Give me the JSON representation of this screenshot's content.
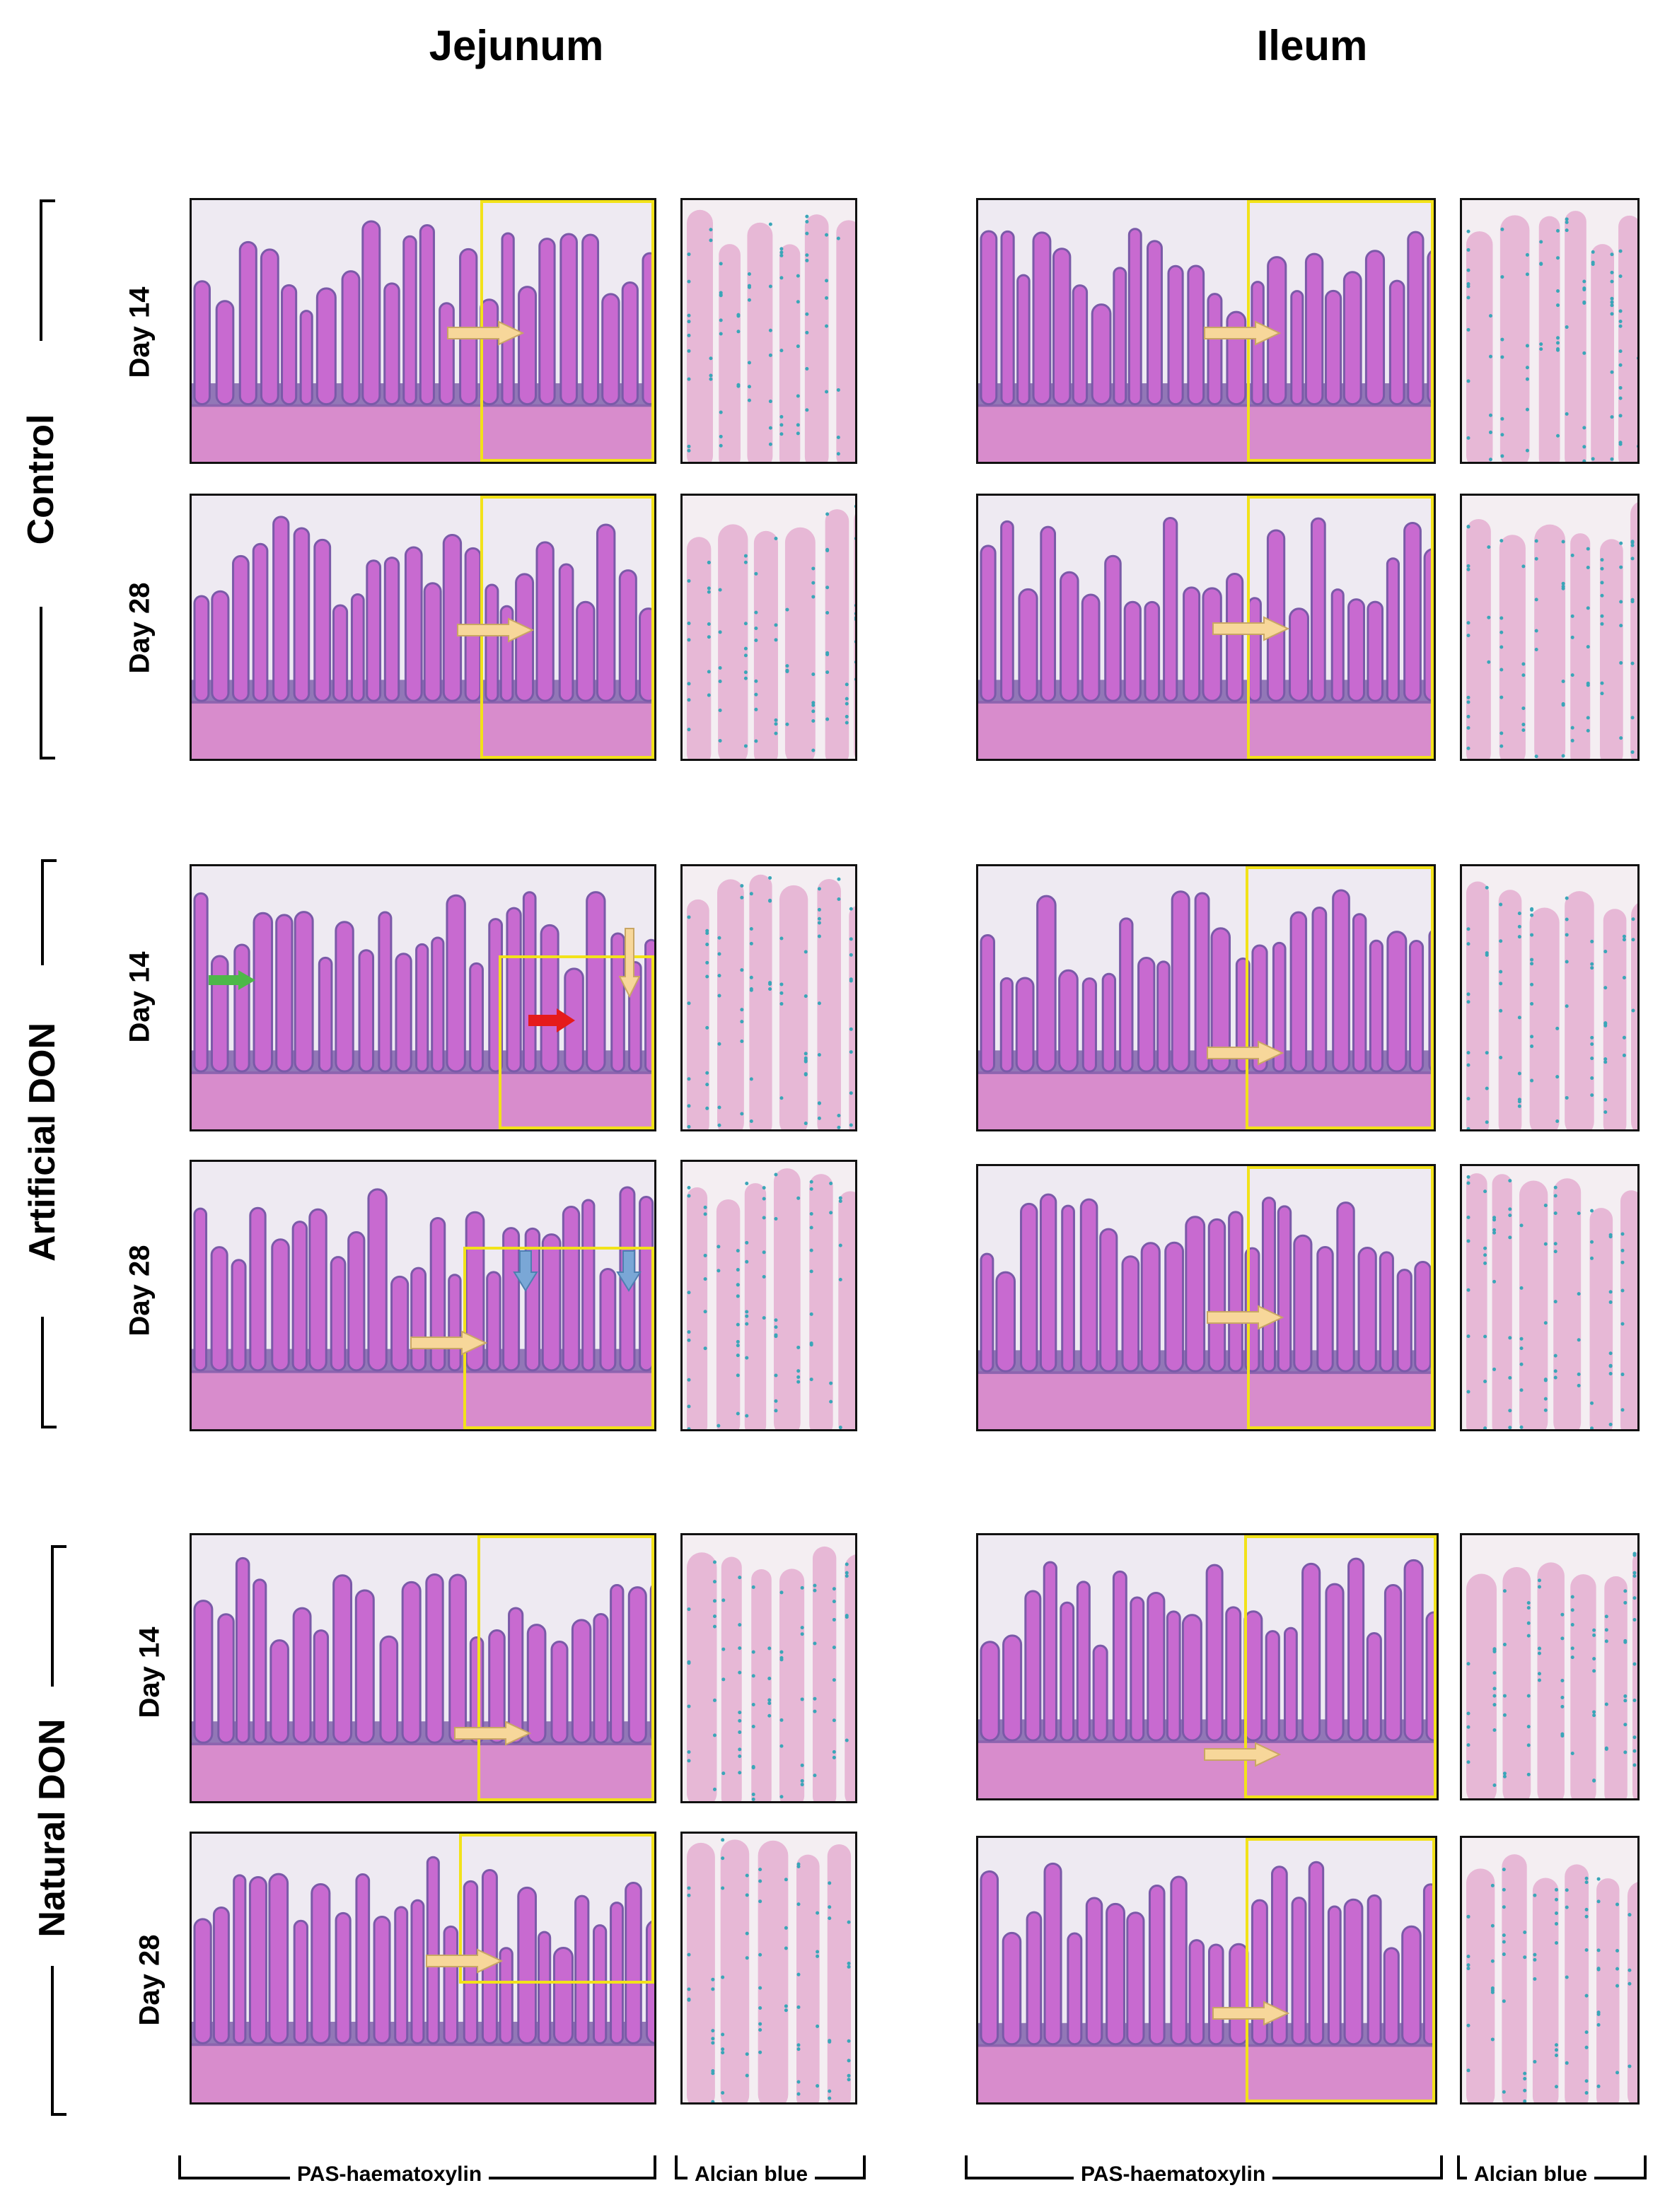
{
  "columns": {
    "jejunum": "Jejunum",
    "ileum": "Ileum"
  },
  "groups": {
    "control": "Control",
    "artificial": "Artificial DON",
    "natural": "Natural DON"
  },
  "days": {
    "d14": "Day 14",
    "d28": "Day 28"
  },
  "stains": {
    "pas": "PAS-haematoxylin",
    "alcian": "Alcian blue"
  },
  "colors": {
    "background": "#ffffff",
    "tissue_pink": "#c86ad0",
    "tissue_purple": "#7a5aa8",
    "muscle": "#d88ccc",
    "lumen": "#eeeaf2",
    "alcian_bg": "#f4eef2",
    "alcian_villus": "#e7b8d6",
    "alcian_goblet": "#3aa6b8",
    "inset_border": "#f2e21a",
    "arrow_yellow": "#f7d79a",
    "arrow_green": "#4db848",
    "arrow_red": "#e51b1b",
    "arrow_blue": "#7aa7d6"
  },
  "icons": [
    "arrow-right-yellow-icon",
    "arrow-right-green-icon",
    "arrow-right-red-icon",
    "arrow-down-blue-icon",
    "arrow-down-yellow-icon"
  ]
}
